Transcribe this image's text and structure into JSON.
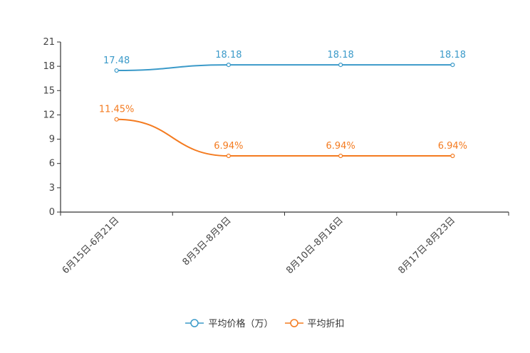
{
  "chart_data": {
    "type": "line",
    "categories": [
      "6月15日-6月21日",
      "8月3日-8月9日",
      "8月10日-8月16日",
      "8月17日-8月23日"
    ],
    "series": [
      {
        "name": "平均价格（万）",
        "color": "#3b9ac9",
        "values": [
          17.48,
          18.18,
          18.18,
          18.18
        ],
        "labels": [
          "17.48",
          "18.18",
          "18.18",
          "18.18"
        ]
      },
      {
        "name": "平均折扣",
        "color": "#f47b20",
        "values": [
          11.45,
          6.94,
          6.94,
          6.94
        ],
        "labels": [
          "11.45%",
          "6.94%",
          "6.94%",
          "6.94%"
        ]
      }
    ],
    "yticks": [
      0,
      3,
      6,
      9,
      12,
      15,
      18,
      21
    ],
    "ylim": [
      0,
      21
    ],
    "title": "",
    "xlabel": "",
    "ylabel": "",
    "legend_position": "bottom-center"
  }
}
